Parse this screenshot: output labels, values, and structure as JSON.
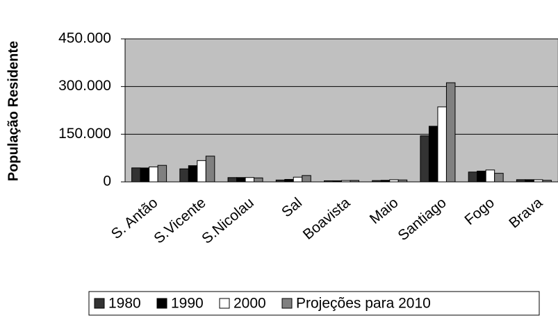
{
  "chart_data": {
    "type": "bar",
    "y_label": "População Residente",
    "categories": [
      "S. Antão",
      "S.Vicente",
      "S.Nicolau",
      "Sal",
      "Boavista",
      "Maio",
      "Santiago",
      "Fogo",
      "Brava"
    ],
    "series": [
      {
        "name": "1980",
        "color": "#333333",
        "values": [
          44000,
          41000,
          13500,
          5800,
          3400,
          4100,
          145000,
          31000,
          6900
        ]
      },
      {
        "name": "1990",
        "color": "#000000",
        "values": [
          43800,
          51000,
          13600,
          7700,
          3400,
          4900,
          175000,
          33900,
          6900
        ]
      },
      {
        "name": "2000",
        "color": "#ffffff",
        "values": [
          47100,
          67000,
          13700,
          14800,
          4200,
          6700,
          236000,
          37400,
          6800
        ]
      },
      {
        "name": "Projeções para 2010",
        "color": "#808080",
        "values": [
          52000,
          81000,
          12500,
          20000,
          4500,
          6000,
          312000,
          27000,
          5000
        ]
      }
    ],
    "ylim": [
      0,
      450000
    ],
    "yticks": [
      0,
      {
        "value": 150000,
        "label": "150.000"
      },
      {
        "value": 300000,
        "label": "300.000"
      },
      {
        "value": 450000,
        "label": "450.000"
      }
    ],
    "grid": true,
    "plot_background": "#c0c0c0",
    "legend": "bottom"
  }
}
